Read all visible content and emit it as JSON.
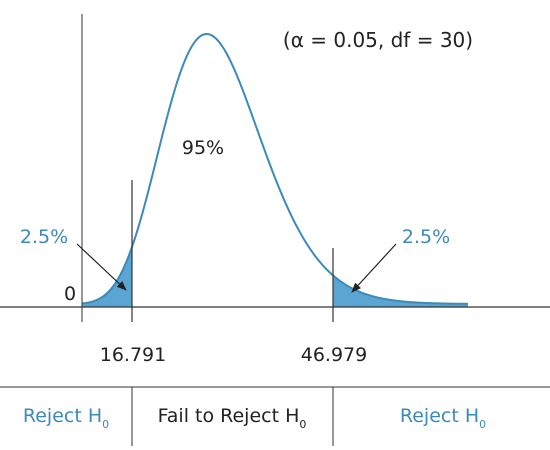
{
  "parameters_label": "(α = 0.05, df = 30)",
  "center_area_label": "95%",
  "left_tail_label": "2.5%",
  "right_tail_label": "2.5%",
  "origin_label": "0",
  "left_critical_value": "16.791",
  "right_critical_value": "46.979",
  "regions": {
    "left": {
      "text": "Reject H",
      "sub": "0"
    },
    "middle": {
      "text": "Fail to Reject H",
      "sub": "0"
    },
    "right": {
      "text": "Reject H",
      "sub": "0"
    }
  },
  "colors": {
    "curve": "#3c8ab9",
    "tail_fill": "#5aa5d2",
    "label_blue": "#3c8ab9",
    "text_dark": "#222222",
    "axis": "#333333"
  }
}
